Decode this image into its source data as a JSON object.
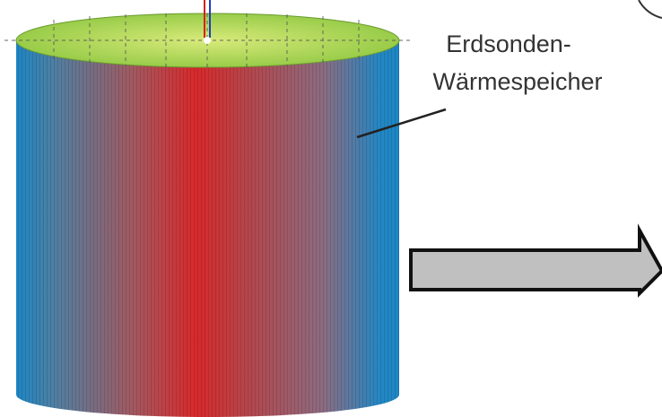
{
  "label": {
    "lines": [
      "Erdsonden-",
      "Wärmespeicher"
    ]
  }
}
